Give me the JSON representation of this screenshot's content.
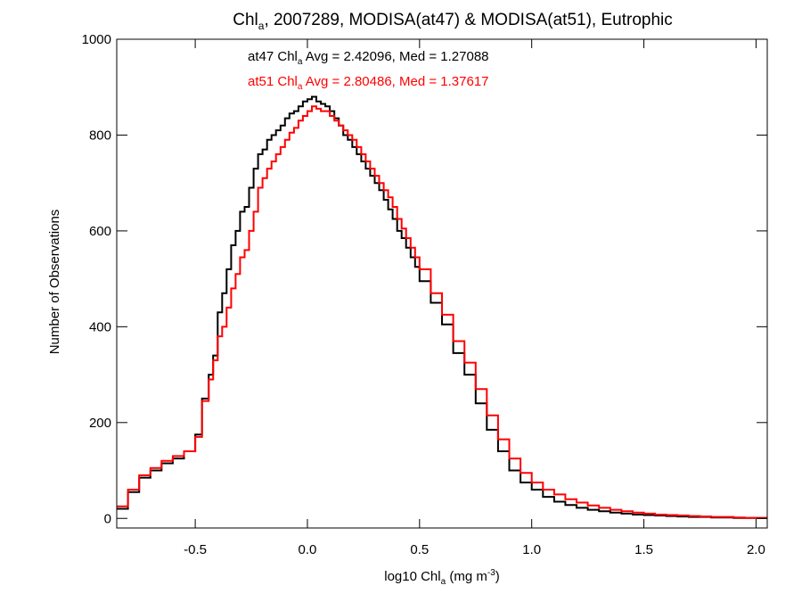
{
  "chart_data": {
    "type": "line",
    "title": {
      "pre": "Chl",
      "sub": "a",
      "post": ", 2007289, MODISA(at47) & MODISA(at51), Eutrophic"
    },
    "xlabel": {
      "pre": "log10 Chl",
      "sub": "a",
      "mid": " (mg m",
      "sup": "-3",
      "post": ")"
    },
    "ylabel": "Number of Observations",
    "xlim": [
      -0.85,
      2.05
    ],
    "ylim": [
      -20,
      1000
    ],
    "xticks": [
      {
        "value": -0.5,
        "label": "-0.5"
      },
      {
        "value": 0.0,
        "label": "0.0"
      },
      {
        "value": 0.5,
        "label": "0.5"
      },
      {
        "value": 1.0,
        "label": "1.0"
      },
      {
        "value": 1.5,
        "label": "1.5"
      },
      {
        "value": 2.0,
        "label": "2.0"
      }
    ],
    "yticks": [
      {
        "value": 0,
        "label": "0"
      },
      {
        "value": 200,
        "label": "200"
      },
      {
        "value": 400,
        "label": "400"
      },
      {
        "value": 600,
        "label": "600"
      },
      {
        "value": 800,
        "label": "800"
      },
      {
        "value": 1000,
        "label": "1000"
      }
    ],
    "grid": false,
    "colors": {
      "at47": "#000000",
      "at51": "#ff0000"
    },
    "annotations": {
      "at47": {
        "pre": "at47 Chl",
        "sub": "a",
        "post": " Avg = 2.42096, Med = 1.27088"
      },
      "at51": {
        "pre": "at51 Chl",
        "sub": "a",
        "post": " Avg = 2.80486, Med = 1.37617"
      }
    },
    "series": [
      {
        "key": "at47",
        "color": "#000000",
        "style": "step",
        "x": [
          -0.85,
          -0.8,
          -0.75,
          -0.7,
          -0.65,
          -0.6,
          -0.55,
          -0.5,
          -0.47,
          -0.44,
          -0.42,
          -0.4,
          -0.38,
          -0.36,
          -0.34,
          -0.32,
          -0.3,
          -0.28,
          -0.26,
          -0.24,
          -0.22,
          -0.2,
          -0.18,
          -0.16,
          -0.14,
          -0.12,
          -0.1,
          -0.08,
          -0.06,
          -0.04,
          -0.02,
          0.0,
          0.02,
          0.04,
          0.06,
          0.08,
          0.1,
          0.12,
          0.14,
          0.16,
          0.18,
          0.2,
          0.22,
          0.24,
          0.26,
          0.28,
          0.3,
          0.32,
          0.34,
          0.36,
          0.38,
          0.4,
          0.42,
          0.44,
          0.46,
          0.48,
          0.5,
          0.55,
          0.6,
          0.65,
          0.7,
          0.75,
          0.8,
          0.85,
          0.9,
          0.95,
          1.0,
          1.05,
          1.1,
          1.15,
          1.2,
          1.25,
          1.3,
          1.35,
          1.4,
          1.45,
          1.5,
          1.55,
          1.6,
          1.65,
          1.7,
          1.75,
          1.8,
          1.85,
          1.9,
          1.95,
          2.0
        ],
        "y": [
          20,
          55,
          85,
          100,
          115,
          125,
          140,
          175,
          250,
          300,
          340,
          430,
          470,
          520,
          570,
          600,
          640,
          650,
          690,
          730,
          760,
          770,
          790,
          800,
          810,
          820,
          835,
          845,
          850,
          860,
          870,
          875,
          880,
          870,
          865,
          860,
          850,
          835,
          820,
          800,
          790,
          775,
          760,
          745,
          730,
          715,
          700,
          685,
          665,
          645,
          625,
          600,
          585,
          565,
          545,
          525,
          495,
          450,
          405,
          345,
          300,
          240,
          185,
          140,
          100,
          75,
          60,
          45,
          35,
          28,
          22,
          18,
          15,
          12,
          10,
          8,
          7,
          6,
          5,
          4,
          3,
          3,
          2,
          2,
          1,
          1,
          1
        ]
      },
      {
        "key": "at51",
        "color": "#ff0000",
        "style": "step",
        "x": [
          -0.85,
          -0.8,
          -0.75,
          -0.7,
          -0.65,
          -0.6,
          -0.55,
          -0.5,
          -0.47,
          -0.44,
          -0.42,
          -0.4,
          -0.38,
          -0.36,
          -0.34,
          -0.32,
          -0.3,
          -0.28,
          -0.26,
          -0.24,
          -0.22,
          -0.2,
          -0.18,
          -0.16,
          -0.14,
          -0.12,
          -0.1,
          -0.08,
          -0.06,
          -0.04,
          -0.02,
          0.0,
          0.02,
          0.04,
          0.06,
          0.08,
          0.1,
          0.12,
          0.14,
          0.16,
          0.18,
          0.2,
          0.22,
          0.24,
          0.26,
          0.28,
          0.3,
          0.32,
          0.34,
          0.36,
          0.38,
          0.4,
          0.42,
          0.44,
          0.46,
          0.48,
          0.5,
          0.55,
          0.6,
          0.65,
          0.7,
          0.75,
          0.8,
          0.85,
          0.9,
          0.95,
          1.0,
          1.05,
          1.1,
          1.15,
          1.2,
          1.25,
          1.3,
          1.35,
          1.4,
          1.45,
          1.5,
          1.55,
          1.6,
          1.65,
          1.7,
          1.75,
          1.8,
          1.85,
          1.9,
          1.95,
          2.0
        ],
        "y": [
          25,
          60,
          90,
          105,
          120,
          130,
          140,
          170,
          245,
          290,
          330,
          380,
          400,
          440,
          480,
          510,
          545,
          560,
          600,
          640,
          690,
          710,
          730,
          745,
          760,
          775,
          790,
          805,
          815,
          830,
          840,
          850,
          860,
          855,
          850,
          850,
          840,
          830,
          820,
          810,
          800,
          790,
          775,
          760,
          745,
          730,
          715,
          700,
          685,
          670,
          650,
          625,
          605,
          585,
          565,
          545,
          520,
          470,
          425,
          370,
          325,
          270,
          215,
          165,
          125,
          95,
          75,
          60,
          50,
          40,
          33,
          27,
          22,
          18,
          15,
          12,
          10,
          8,
          7,
          6,
          5,
          4,
          3,
          3,
          2,
          1,
          1
        ]
      }
    ]
  }
}
